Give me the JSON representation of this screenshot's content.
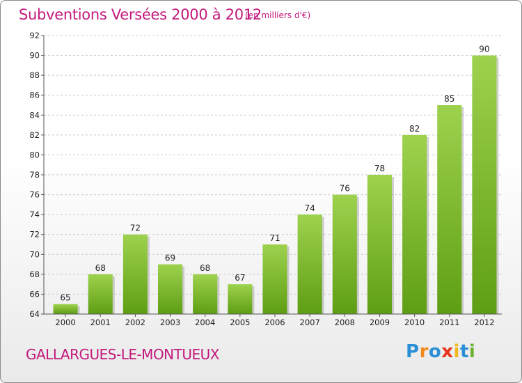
{
  "header": {
    "title": "Subventions Versées 2000 à 2012",
    "subtitle": "(en milliers d'€)"
  },
  "footer": {
    "commune": "GALLARGUES-LE-MONTUEUX",
    "logo": "Proxiti",
    "logo_letters": [
      {
        "char": "P",
        "color": "#2c8fd6"
      },
      {
        "char": "r",
        "color": "#f08a1c"
      },
      {
        "char": "o",
        "color": "#2c8fd6"
      },
      {
        "char": "x",
        "color": "#e8341c"
      },
      {
        "char": "i",
        "color": "#f0b81c"
      },
      {
        "char": "t",
        "color": "#2c8fd6"
      },
      {
        "char": "i",
        "color": "#6cb030"
      }
    ]
  },
  "colors": {
    "accent": "#c2187c",
    "bar_top": "#9ed24e",
    "bar_bottom": "#5e9e14",
    "grid": "#c8c8c8"
  },
  "chart_data": {
    "type": "bar",
    "title": "Subventions Versées 2000 à 2012",
    "subtitle": "(en milliers d'€)",
    "categories": [
      "2000",
      "2001",
      "2002",
      "2003",
      "2004",
      "2005",
      "2006",
      "2007",
      "2008",
      "2009",
      "2010",
      "2011",
      "2012"
    ],
    "values": [
      65,
      68,
      72,
      69,
      68,
      67,
      71,
      74,
      76,
      78,
      82,
      85,
      90
    ],
    "ylim": [
      64,
      92
    ],
    "yticks": [
      64,
      66,
      68,
      70,
      72,
      74,
      76,
      78,
      80,
      82,
      84,
      86,
      88,
      90,
      92
    ],
    "grid": "horizontal dashed",
    "xlabel": "",
    "ylabel": ""
  }
}
